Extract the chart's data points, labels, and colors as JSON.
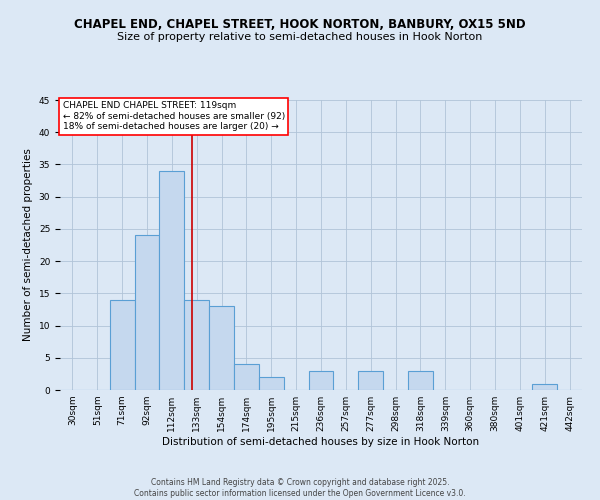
{
  "title_line1": "CHAPEL END, CHAPEL STREET, HOOK NORTON, BANBURY, OX15 5ND",
  "title_line2": "Size of property relative to semi-detached houses in Hook Norton",
  "xlabel": "Distribution of semi-detached houses by size in Hook Norton",
  "ylabel": "Number of semi-detached properties",
  "annotation_line1": "CHAPEL END CHAPEL STREET: 119sqm",
  "annotation_line2": "← 82% of semi-detached houses are smaller (92)",
  "annotation_line3": "18% of semi-detached houses are larger (20) →",
  "bar_labels": [
    "30sqm",
    "51sqm",
    "71sqm",
    "92sqm",
    "112sqm",
    "133sqm",
    "154sqm",
    "174sqm",
    "195sqm",
    "215sqm",
    "236sqm",
    "257sqm",
    "277sqm",
    "298sqm",
    "318sqm",
    "339sqm",
    "360sqm",
    "380sqm",
    "401sqm",
    "421sqm",
    "442sqm"
  ],
  "bar_values": [
    0,
    0,
    14,
    24,
    34,
    14,
    13,
    4,
    2,
    0,
    3,
    0,
    3,
    0,
    3,
    0,
    0,
    0,
    0,
    1,
    0
  ],
  "bar_width": 1.0,
  "bar_color": "#c5d8ee",
  "bar_edge_color": "#5a9fd4",
  "bar_edge_width": 0.8,
  "red_line_x": 4.83,
  "red_line_color": "#cc0000",
  "ylim": [
    0,
    45
  ],
  "yticks": [
    0,
    5,
    10,
    15,
    20,
    25,
    30,
    35,
    40,
    45
  ],
  "grid_color": "#b0c4d8",
  "bg_color": "#dce8f5",
  "plot_bg_color": "#dce8f5",
  "footer_line1": "Contains HM Land Registry data © Crown copyright and database right 2025.",
  "footer_line2": "Contains public sector information licensed under the Open Government Licence v3.0.",
  "title_fontsize": 8.5,
  "subtitle_fontsize": 8,
  "axis_label_fontsize": 7.5,
  "tick_fontsize": 6.5,
  "annotation_fontsize": 6.5,
  "footer_fontsize": 5.5
}
